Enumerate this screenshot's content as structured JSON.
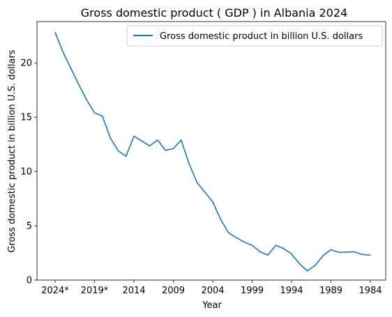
{
  "chart_data": {
    "type": "line",
    "title": "Gross domestic product ( GDP ) in Albania 2024",
    "xlabel": "Year",
    "ylabel": "Gross domestic product in billion U.S. dollars",
    "x_reversed": true,
    "xlim": [
      1984,
      2024
    ],
    "ylim": [
      0,
      23.8
    ],
    "grid": false,
    "legend": {
      "position": "top-right"
    },
    "x_ticks": [
      {
        "value": 2024,
        "label": "2024*"
      },
      {
        "value": 2019,
        "label": "2019*"
      },
      {
        "value": 2014,
        "label": "2014"
      },
      {
        "value": 2009,
        "label": "2009"
      },
      {
        "value": 2004,
        "label": "2004"
      },
      {
        "value": 1999,
        "label": "1999"
      },
      {
        "value": 1994,
        "label": "1994"
      },
      {
        "value": 1989,
        "label": "1989"
      },
      {
        "value": 1984,
        "label": "1984"
      }
    ],
    "y_ticks": [
      0,
      5,
      10,
      15,
      20
    ],
    "series": [
      {
        "name": "Gross domestic product in billion U.S. dollars",
        "color": "#1f77b4",
        "x": [
          2024,
          2023,
          2022,
          2021,
          2020,
          2019,
          2018,
          2017,
          2016,
          2015,
          2014,
          2013,
          2012,
          2011,
          2010,
          2009,
          2008,
          2007,
          2006,
          2005,
          2004,
          2003,
          2002,
          2001,
          2000,
          1999,
          1998,
          1997,
          1996,
          1995,
          1994,
          1993,
          1992,
          1991,
          1990,
          1989,
          1988,
          1987,
          1986,
          1985,
          1984
        ],
        "values": [
          22.8,
          21.0,
          19.5,
          18.0,
          16.6,
          15.4,
          15.1,
          13.1,
          11.9,
          11.4,
          13.25,
          12.8,
          12.35,
          12.9,
          11.95,
          12.1,
          12.9,
          10.7,
          9.0,
          8.1,
          7.2,
          5.6,
          4.35,
          3.9,
          3.5,
          3.2,
          2.6,
          2.3,
          3.2,
          2.9,
          2.4,
          1.5,
          0.85,
          1.35,
          2.25,
          2.8,
          2.55,
          2.58,
          2.6,
          2.35,
          2.3
        ]
      }
    ]
  }
}
